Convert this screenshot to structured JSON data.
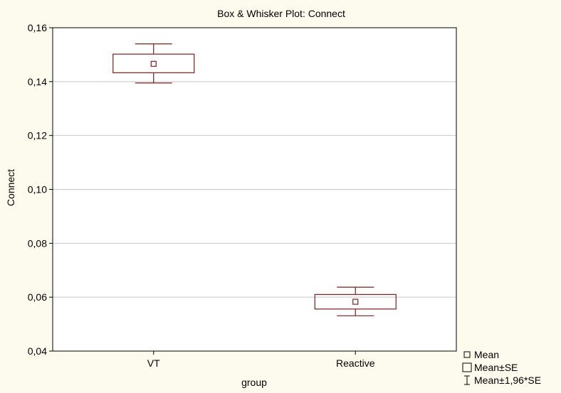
{
  "chart_data": {
    "type": "box",
    "title": "Box & Whisker Plot:  Connect",
    "xlabel": "group",
    "ylabel": "Connect",
    "categories": [
      "VT",
      "Reactive"
    ],
    "ylim": [
      0.04,
      0.16
    ],
    "yticks": [
      "0,04",
      "0,06",
      "0,08",
      "0,10",
      "0,12",
      "0,14",
      "0,16"
    ],
    "ytick_values": [
      0.04,
      0.06,
      0.08,
      0.1,
      0.12,
      0.14,
      0.16
    ],
    "grid": true,
    "series": [
      {
        "category": "VT",
        "mean": 0.1466,
        "se_low": 0.1433,
        "se_high": 0.1502,
        "ci_low": 0.1395,
        "ci_high": 0.154
      },
      {
        "category": "Reactive",
        "mean": 0.0583,
        "se_low": 0.0556,
        "se_high": 0.061,
        "ci_low": 0.0531,
        "ci_high": 0.0637
      }
    ],
    "legend": {
      "position": "bottom-right",
      "entries": [
        "Mean",
        "Mean±SE",
        "Mean±1,96*SE"
      ]
    },
    "colors": {
      "box": "#7a1f1f",
      "grid": "#c8c8c8",
      "background": "#fdfbee",
      "plot_bg": "#ffffff"
    }
  }
}
